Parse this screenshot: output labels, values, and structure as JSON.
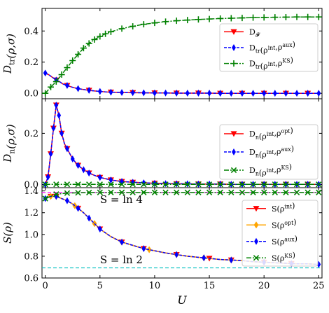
{
  "chart_data": [
    {
      "type": "line",
      "ylabel": "D_tr(ρ,σ)",
      "xlabel": "",
      "xlim": [
        -0.3,
        25.3
      ],
      "ylim": [
        -0.035,
        0.545
      ],
      "yticks": [
        0.0,
        0.2,
        0.4
      ],
      "ytick_labels": [
        "0.0",
        "0.2",
        "0.4"
      ],
      "legend_position": "right",
      "series": [
        {
          "name": "D_𝓕",
          "color": "#ff0000",
          "dash": "",
          "marker": "tri-down",
          "x": [
            0,
            0.3,
            0.6,
            1,
            1.3,
            1.6,
            2,
            2.3,
            2.6,
            3,
            3.5,
            4,
            4.5,
            5,
            5.5,
            6,
            6.5,
            7,
            8,
            9,
            10,
            11,
            12,
            13,
            14,
            15,
            16,
            17,
            18,
            19,
            20,
            21,
            22,
            23,
            24,
            25
          ],
          "y": [
            0.13,
            0.12,
            0.105,
            0.085,
            0.075,
            0.06,
            0.05,
            0.043,
            0.036,
            0.03,
            0.024,
            0.019,
            0.015,
            0.012,
            0.009,
            0.007,
            0.006,
            0.005,
            0.004,
            0.003,
            0.002,
            0.002,
            0.001,
            0.001,
            0.001,
            0.001,
            0,
            0,
            0,
            0,
            0,
            0,
            0,
            0,
            0,
            0
          ],
          "marker_x": [
            1,
            2,
            4,
            6,
            8,
            10,
            12,
            14,
            16,
            18,
            20,
            22,
            24
          ]
        },
        {
          "name": "D_tr(ρ^int,ρ^aux)",
          "color": "#0000ff",
          "dash": "4 2",
          "marker": "diamond",
          "x": [
            0,
            0.3,
            0.6,
            1,
            1.3,
            1.6,
            2,
            2.3,
            2.6,
            3,
            3.5,
            4,
            4.5,
            5,
            5.5,
            6,
            6.5,
            7,
            8,
            9,
            10,
            11,
            12,
            13,
            14,
            15,
            16,
            17,
            18,
            19,
            20,
            21,
            22,
            23,
            24,
            25
          ],
          "y": [
            0.13,
            0.12,
            0.105,
            0.085,
            0.075,
            0.06,
            0.05,
            0.043,
            0.036,
            0.03,
            0.024,
            0.019,
            0.015,
            0.012,
            0.009,
            0.007,
            0.006,
            0.005,
            0.004,
            0.003,
            0.002,
            0.002,
            0.001,
            0.001,
            0.001,
            0.001,
            0,
            0,
            0,
            0,
            0,
            0,
            0,
            0,
            0,
            0
          ],
          "marker_x": [
            0,
            1,
            2,
            3,
            4,
            5,
            6,
            7,
            8,
            9,
            10,
            11,
            12,
            13,
            14,
            15,
            16,
            17,
            18,
            19,
            20,
            21,
            22,
            23,
            24,
            25
          ]
        },
        {
          "name": "D_tr(ρ^int,ρ^KS)",
          "color": "#008000",
          "dash": "7 2 2 2",
          "marker": "plus",
          "x": [
            0,
            0.5,
            1,
            1.5,
            2,
            2.5,
            3,
            3.5,
            4,
            4.5,
            5,
            5.5,
            6,
            6.5,
            7,
            7.5,
            8,
            9,
            10,
            11,
            12,
            13,
            14,
            15,
            16,
            17,
            18,
            19,
            20,
            21,
            22,
            23,
            24,
            25
          ],
          "y": [
            0.0,
            0.04,
            0.075,
            0.12,
            0.165,
            0.21,
            0.25,
            0.29,
            0.32,
            0.345,
            0.365,
            0.382,
            0.395,
            0.405,
            0.415,
            0.423,
            0.43,
            0.443,
            0.452,
            0.46,
            0.466,
            0.47,
            0.474,
            0.477,
            0.48,
            0.482,
            0.484,
            0.486,
            0.487,
            0.488,
            0.489,
            0.49,
            0.49,
            0.49
          ],
          "marker_x": [
            0,
            0.5,
            1,
            1.5,
            2,
            2.5,
            3,
            3.5,
            4,
            4.5,
            5,
            5.5,
            6,
            7,
            8,
            9,
            10,
            11,
            12,
            13,
            14,
            15,
            16,
            17,
            18,
            19,
            20,
            21,
            22,
            23,
            24,
            25
          ]
        }
      ]
    },
    {
      "type": "line",
      "ylabel": "D_n(ρ,σ)",
      "xlabel": "",
      "xlim": [
        -0.3,
        25.3
      ],
      "ylim": [
        -0.012,
        0.335
      ],
      "yticks": [
        0.0,
        0.2
      ],
      "ytick_labels": [
        "0.0",
        "0.2"
      ],
      "legend_position": "right",
      "series": [
        {
          "name": "D_n(ρ^int,ρ^opt)",
          "color": "#ff0000",
          "dash": "",
          "marker": "tri-down",
          "x": [
            0,
            0.25,
            0.5,
            0.75,
            1,
            1.25,
            1.5,
            1.75,
            2,
            2.5,
            3,
            3.5,
            4,
            4.5,
            5,
            6,
            7,
            8,
            9,
            10,
            11,
            12,
            13,
            14,
            15,
            16,
            17,
            18,
            19,
            20,
            21,
            22,
            23,
            24,
            25
          ],
          "y": [
            0.0,
            0.03,
            0.12,
            0.22,
            0.31,
            0.27,
            0.2,
            0.16,
            0.14,
            0.1,
            0.075,
            0.058,
            0.045,
            0.036,
            0.028,
            0.018,
            0.012,
            0.009,
            0.007,
            0.005,
            0.004,
            0.003,
            0.003,
            0.002,
            0.002,
            0.002,
            0.001,
            0.001,
            0.001,
            0.001,
            0.001,
            0.001,
            0.001,
            0.001,
            0.001
          ],
          "marker_x": [
            0.25,
            0.5,
            0.75,
            1,
            1.5,
            2,
            3,
            4,
            5,
            6,
            7,
            8,
            10,
            12,
            14,
            16,
            18,
            20,
            22,
            24
          ]
        },
        {
          "name": "D_n(ρ^int,ρ^aux)",
          "color": "#0000ff",
          "dash": "4 2",
          "marker": "diamond",
          "x": [
            0,
            0.25,
            0.5,
            0.75,
            1,
            1.25,
            1.5,
            1.75,
            2,
            2.5,
            3,
            3.5,
            4,
            4.5,
            5,
            6,
            7,
            8,
            9,
            10,
            11,
            12,
            13,
            14,
            15,
            16,
            17,
            18,
            19,
            20,
            21,
            22,
            23,
            24,
            25
          ],
          "y": [
            0.0,
            0.03,
            0.12,
            0.22,
            0.31,
            0.27,
            0.2,
            0.16,
            0.14,
            0.1,
            0.075,
            0.058,
            0.045,
            0.036,
            0.028,
            0.018,
            0.012,
            0.009,
            0.007,
            0.005,
            0.004,
            0.003,
            0.003,
            0.002,
            0.002,
            0.002,
            0.001,
            0.001,
            0.001,
            0.001,
            0.001,
            0.001,
            0.001,
            0.001,
            0.001
          ],
          "marker_x": [
            0,
            0.25,
            0.5,
            0.75,
            1,
            1.25,
            1.5,
            2,
            2.5,
            3,
            3.5,
            4,
            5,
            6,
            7,
            8,
            9,
            10,
            11,
            12,
            13,
            14,
            15,
            16,
            17,
            18,
            19,
            20,
            21,
            22,
            23,
            24,
            25
          ]
        },
        {
          "name": "D_n(ρ^int,ρ^KS)",
          "color": "#008000",
          "dash": "7 2 2 2",
          "marker": "x",
          "x": [
            0,
            25
          ],
          "y": [
            0.001,
            0.001
          ],
          "marker_x": [
            0,
            1,
            2,
            3,
            4,
            5,
            6,
            7,
            8,
            9,
            10,
            11,
            12,
            13,
            14,
            15,
            16,
            17,
            18,
            19,
            20,
            21,
            22,
            23,
            24,
            25
          ]
        }
      ]
    },
    {
      "type": "line",
      "ylabel": "S(ρ)",
      "xlabel": "U",
      "xlim": [
        -0.3,
        25.3
      ],
      "ylim": [
        0.6,
        1.43
      ],
      "yticks": [
        0.6,
        0.8,
        1.0,
        1.2,
        1.4
      ],
      "ytick_labels": [
        "0.6",
        "0.8",
        "1.0",
        "1.2",
        "1.4"
      ],
      "xticks": [
        0,
        5,
        10,
        15,
        20,
        25
      ],
      "xtick_labels": [
        "0",
        "5",
        "10",
        "15",
        "20",
        "25"
      ],
      "legend_position": "right",
      "annotations": [
        {
          "text": "S = ln 4",
          "x": 5,
          "y": 1.29
        },
        {
          "text": "S = ln 2",
          "x": 5,
          "y": 0.735
        }
      ],
      "reference_lines": [
        {
          "value": 1.386,
          "color": "#ff00ff",
          "dash": "5 3"
        },
        {
          "value": 0.693,
          "color": "#00c0c0",
          "dash": "5 3"
        }
      ],
      "series": [
        {
          "name": "S(ρ^int)",
          "color": "#ff0000",
          "dash": "",
          "marker": "tri-down",
          "x": [
            0,
            0.5,
            1,
            1.5,
            2,
            2.5,
            3,
            3.5,
            4,
            5,
            6,
            7,
            8,
            9,
            10,
            11,
            12,
            13,
            14,
            15,
            16,
            17,
            18,
            19,
            20,
            21,
            22,
            23,
            24,
            25
          ],
          "y": [
            1.33,
            1.35,
            1.35,
            1.33,
            1.31,
            1.28,
            1.24,
            1.2,
            1.15,
            1.05,
            0.98,
            0.93,
            0.9,
            0.87,
            0.85,
            0.83,
            0.815,
            0.8,
            0.79,
            0.78,
            0.77,
            0.765,
            0.76,
            0.75,
            0.745,
            0.74,
            0.735,
            0.73,
            0.73,
            0.725
          ],
          "marker_x": [
            0.5,
            1,
            3,
            5,
            7,
            9,
            12,
            15,
            17,
            20,
            22.5
          ]
        },
        {
          "name": "S(ρ^opt)",
          "color": "#ffa500",
          "dash": "",
          "marker": "diamond-thin",
          "x": [
            0,
            0.5,
            1,
            1.5,
            2,
            2.5,
            3,
            3.5,
            4,
            5,
            6,
            7,
            8,
            9,
            10,
            11,
            12,
            13,
            14,
            15,
            16,
            17,
            18,
            19,
            20,
            21,
            22,
            23,
            24,
            25
          ],
          "y": [
            1.33,
            1.35,
            1.35,
            1.33,
            1.31,
            1.28,
            1.24,
            1.2,
            1.15,
            1.05,
            0.98,
            0.93,
            0.9,
            0.87,
            0.85,
            0.83,
            0.815,
            0.8,
            0.79,
            0.78,
            0.77,
            0.765,
            0.76,
            0.75,
            0.745,
            0.74,
            0.735,
            0.73,
            0.73,
            0.725
          ],
          "marker_x": [
            0.5,
            1,
            2.7,
            4.5,
            7,
            9.5,
            12,
            14.5,
            17,
            20,
            22.5
          ]
        },
        {
          "name": "S(ρ^aux)",
          "color": "#0000ff",
          "dash": "4 2",
          "marker": "diamond",
          "x": [
            0,
            0.5,
            1,
            1.5,
            2,
            2.5,
            3,
            3.5,
            4,
            5,
            6,
            7,
            8,
            9,
            10,
            11,
            12,
            13,
            14,
            15,
            16,
            17,
            18,
            19,
            20,
            21,
            22,
            23,
            24,
            25
          ],
          "y": [
            1.33,
            1.35,
            1.35,
            1.33,
            1.31,
            1.28,
            1.24,
            1.2,
            1.15,
            1.05,
            0.98,
            0.93,
            0.9,
            0.87,
            0.85,
            0.83,
            0.815,
            0.8,
            0.79,
            0.78,
            0.77,
            0.765,
            0.76,
            0.75,
            0.745,
            0.74,
            0.735,
            0.73,
            0.73,
            0.725
          ],
          "marker_x": [
            0,
            1,
            2,
            3,
            4,
            5,
            7,
            9,
            12,
            14.5,
            17,
            20,
            22.5,
            25
          ]
        },
        {
          "name": "S(ρ^KS)",
          "color": "#008000",
          "dash": "7 2 2 2",
          "marker": "x",
          "x": [
            0,
            0.5,
            1,
            1.5,
            2,
            3,
            4,
            5,
            6,
            8,
            10,
            15,
            20,
            25
          ],
          "y": [
            1.33,
            1.35,
            1.37,
            1.375,
            1.38,
            1.383,
            1.385,
            1.386,
            1.386,
            1.386,
            1.386,
            1.386,
            1.386,
            1.386
          ],
          "marker_x": [
            0,
            1,
            2,
            3,
            4,
            5,
            6,
            7,
            8,
            9,
            10,
            11,
            12,
            13,
            14,
            15,
            16,
            17,
            18,
            19,
            20,
            21,
            22,
            23,
            24,
            25
          ]
        }
      ]
    }
  ]
}
